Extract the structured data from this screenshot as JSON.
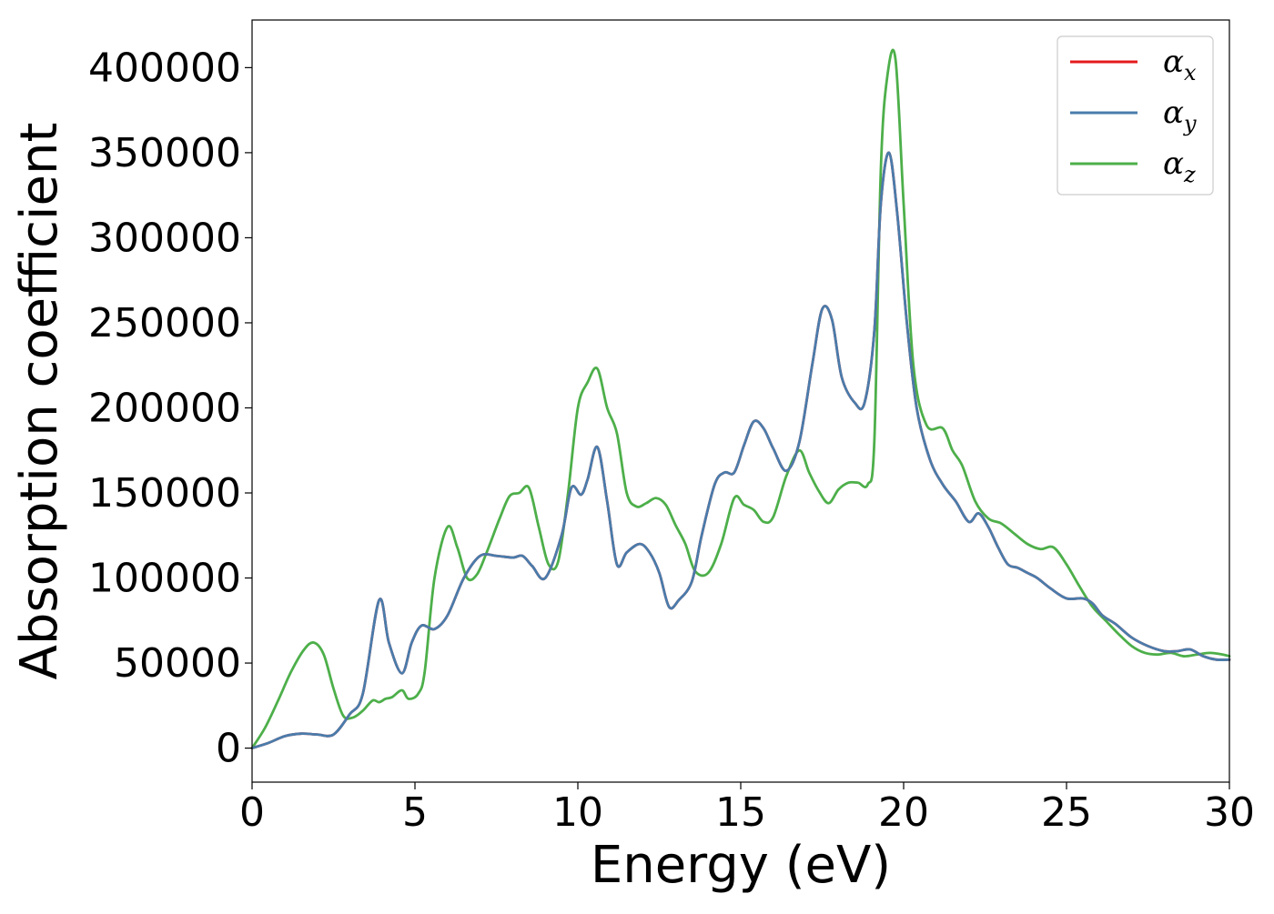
{
  "chart_data": {
    "type": "line",
    "title": "",
    "xlabel": "Energy (eV)",
    "ylabel": "Absorption coefficient",
    "xlim": [
      0,
      30
    ],
    "ylim": [
      -20000,
      428000
    ],
    "x_ticks": [
      "0",
      "5",
      "10",
      "15",
      "20",
      "25",
      "30"
    ],
    "y_ticks": [
      "0",
      "50000",
      "100000",
      "150000",
      "200000",
      "250000",
      "300000",
      "350000",
      "400000"
    ],
    "grid": false,
    "legend_position": "top-right",
    "series": [
      {
        "name": "α",
        "subscript": "x",
        "color": "#e41a1c",
        "x": [
          0,
          0.5,
          1.0,
          1.5,
          2.0,
          2.5,
          3.0,
          3.4,
          3.9,
          4.2,
          4.6,
          4.9,
          5.2,
          5.6,
          6.0,
          6.5,
          7.0,
          7.5,
          8.0,
          8.3,
          8.6,
          9.0,
          9.5,
          9.8,
          10.1,
          10.3,
          10.6,
          10.9,
          11.2,
          11.5,
          11.9,
          12.2,
          12.5,
          12.8,
          13.1,
          13.5,
          13.8,
          14.2,
          14.5,
          14.8,
          15.1,
          15.4,
          15.7,
          16.0,
          16.4,
          16.8,
          17.2,
          17.5,
          17.8,
          18.1,
          18.5,
          18.8,
          19.1,
          19.3,
          19.55,
          19.8,
          20.1,
          20.4,
          20.8,
          21.2,
          21.6,
          22.0,
          22.3,
          22.6,
          22.9,
          23.2,
          23.5,
          23.8,
          24.1,
          24.5,
          25.0,
          25.5,
          25.8,
          26.1,
          26.5,
          27.0,
          27.5,
          28.0,
          28.4,
          28.8,
          29.2,
          29.6,
          30.0
        ],
        "y": [
          0,
          3000,
          7000,
          8500,
          8000,
          8000,
          20000,
          32000,
          87000,
          62000,
          44000,
          62000,
          72000,
          70000,
          78000,
          100000,
          113000,
          113000,
          112000,
          113000,
          107000,
          100000,
          125000,
          153000,
          149000,
          158000,
          177000,
          145000,
          108000,
          115000,
          120000,
          115000,
          103000,
          83000,
          87000,
          98000,
          125000,
          155000,
          162000,
          162000,
          178000,
          192000,
          188000,
          176000,
          163000,
          180000,
          226000,
          258000,
          252000,
          218000,
          203000,
          203000,
          245000,
          320000,
          350000,
          315000,
          250000,
          200000,
          170000,
          155000,
          145000,
          133000,
          138000,
          130000,
          118000,
          108000,
          106000,
          103000,
          100000,
          94000,
          88000,
          88000,
          85000,
          78000,
          73000,
          65000,
          60000,
          57000,
          57000,
          58000,
          54000,
          52000,
          52000
        ]
      },
      {
        "name": "α",
        "subscript": "y",
        "color": "#4a7cab",
        "x": [
          0,
          0.5,
          1.0,
          1.5,
          2.0,
          2.5,
          3.0,
          3.4,
          3.9,
          4.2,
          4.6,
          4.9,
          5.2,
          5.6,
          6.0,
          6.5,
          7.0,
          7.5,
          8.0,
          8.3,
          8.6,
          9.0,
          9.5,
          9.8,
          10.1,
          10.3,
          10.6,
          10.9,
          11.2,
          11.5,
          11.9,
          12.2,
          12.5,
          12.8,
          13.1,
          13.5,
          13.8,
          14.2,
          14.5,
          14.8,
          15.1,
          15.4,
          15.7,
          16.0,
          16.4,
          16.8,
          17.2,
          17.5,
          17.8,
          18.1,
          18.5,
          18.8,
          19.1,
          19.3,
          19.55,
          19.8,
          20.1,
          20.4,
          20.8,
          21.2,
          21.6,
          22.0,
          22.3,
          22.6,
          22.9,
          23.2,
          23.5,
          23.8,
          24.1,
          24.5,
          25.0,
          25.5,
          25.8,
          26.1,
          26.5,
          27.0,
          27.5,
          28.0,
          28.4,
          28.8,
          29.2,
          29.6,
          30.0
        ],
        "y": [
          0,
          3000,
          7000,
          8500,
          8000,
          8000,
          20000,
          32000,
          87000,
          62000,
          44000,
          62000,
          72000,
          70000,
          78000,
          100000,
          113000,
          113000,
          112000,
          113000,
          107000,
          100000,
          125000,
          153000,
          149000,
          158000,
          177000,
          145000,
          108000,
          115000,
          120000,
          115000,
          103000,
          83000,
          87000,
          98000,
          125000,
          155000,
          162000,
          162000,
          178000,
          192000,
          188000,
          176000,
          163000,
          180000,
          226000,
          258000,
          252000,
          218000,
          203000,
          203000,
          245000,
          320000,
          350000,
          315000,
          250000,
          200000,
          170000,
          155000,
          145000,
          133000,
          138000,
          130000,
          118000,
          108000,
          106000,
          103000,
          100000,
          94000,
          88000,
          88000,
          85000,
          78000,
          73000,
          65000,
          60000,
          57000,
          57000,
          58000,
          54000,
          52000,
          52000
        ]
      },
      {
        "name": "α",
        "subscript": "z",
        "color": "#4daf4a",
        "x": [
          0,
          0.4,
          0.8,
          1.2,
          1.6,
          1.9,
          2.2,
          2.5,
          2.8,
          3.1,
          3.4,
          3.7,
          3.9,
          4.1,
          4.3,
          4.6,
          4.8,
          5.1,
          5.3,
          5.6,
          6.0,
          6.3,
          6.6,
          6.9,
          7.2,
          7.6,
          7.9,
          8.2,
          8.5,
          8.8,
          9.1,
          9.4,
          9.7,
          10.0,
          10.3,
          10.6,
          10.9,
          11.2,
          11.5,
          11.8,
          12.1,
          12.4,
          12.7,
          13.0,
          13.3,
          13.6,
          14.0,
          14.4,
          14.8,
          15.1,
          15.4,
          15.7,
          16.0,
          16.4,
          16.8,
          17.1,
          17.4,
          17.7,
          18.0,
          18.3,
          18.6,
          18.9,
          19.1,
          19.3,
          19.5,
          19.75,
          20.0,
          20.3,
          20.7,
          21.2,
          21.5,
          21.8,
          22.2,
          22.6,
          23.0,
          23.4,
          23.8,
          24.2,
          24.6,
          25.0,
          25.4,
          25.8,
          26.2,
          26.6,
          27.0,
          27.4,
          27.8,
          28.2,
          28.6,
          29.0,
          29.4,
          29.8,
          30.0
        ],
        "y": [
          0,
          12000,
          28000,
          45000,
          58000,
          62000,
          55000,
          35000,
          19000,
          18000,
          22000,
          28000,
          27000,
          29000,
          30000,
          34000,
          29000,
          32000,
          45000,
          100000,
          130000,
          118000,
          100000,
          102000,
          115000,
          135000,
          148000,
          150000,
          153000,
          130000,
          108000,
          110000,
          150000,
          200000,
          215000,
          223000,
          200000,
          185000,
          150000,
          142000,
          144000,
          147000,
          143000,
          131000,
          120000,
          104000,
          103000,
          120000,
          147000,
          143000,
          140000,
          133000,
          136000,
          160000,
          175000,
          162000,
          151000,
          144000,
          152000,
          156000,
          156000,
          155000,
          180000,
          340000,
          395000,
          405000,
          320000,
          225000,
          190000,
          188000,
          175000,
          166000,
          145000,
          135000,
          132000,
          126000,
          120000,
          117000,
          118000,
          108000,
          95000,
          83000,
          75000,
          67000,
          60000,
          56000,
          55000,
          56000,
          54000,
          55000,
          56000,
          55000,
          54000
        ]
      }
    ]
  }
}
